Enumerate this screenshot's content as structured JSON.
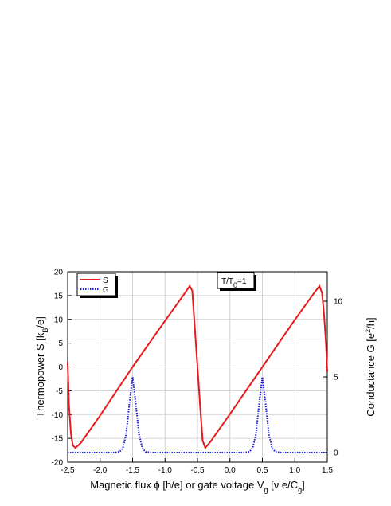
{
  "chart_data": {
    "type": "line",
    "x_label": [
      "Magnetic flux ϕ [h/e] or gate voltage V",
      "g",
      " [ν e/C",
      "g",
      "]"
    ],
    "y_label": [
      "Thermopower S [k",
      "B",
      "/e]"
    ],
    "y2_label": [
      "Conductance G [e",
      "2",
      "/h]"
    ],
    "annotation": [
      "T/T",
      "0",
      "=1"
    ],
    "xlim": [
      -2.5,
      1.5
    ],
    "xticks": [
      {
        "value": -2.5,
        "label": "-2,5"
      },
      {
        "value": -2.0,
        "label": "-2,0"
      },
      {
        "value": -1.5,
        "label": "-1,5"
      },
      {
        "value": -1.0,
        "label": "-1,0"
      },
      {
        "value": -0.5,
        "label": "-0,5"
      },
      {
        "value": 0.0,
        "label": "0,0"
      },
      {
        "value": 0.5,
        "label": "0,5"
      },
      {
        "value": 1.0,
        "label": "1,0"
      },
      {
        "value": 1.5,
        "label": "1,5"
      }
    ],
    "ylim": [
      -20,
      20
    ],
    "yticks": [
      -20,
      -15,
      -10,
      -5,
      0,
      5,
      10,
      15,
      20
    ],
    "y2lim": [
      -0.63,
      11.95
    ],
    "y2ticks": [
      0,
      5,
      10
    ],
    "grid": true,
    "legend": "top-left",
    "series": [
      {
        "name": "S",
        "color": "#e8191b",
        "style": "solid",
        "x": [
          -2.5,
          -2.48,
          -2.45,
          -2.42,
          -2.38,
          -2.3,
          -2.0,
          -1.5,
          -1.0,
          -0.7,
          -0.62,
          -0.58,
          -0.55,
          -0.5,
          -0.45,
          -0.42,
          -0.38,
          -0.3,
          0.0,
          0.5,
          1.0,
          1.3,
          1.38,
          1.42,
          1.45,
          1.48,
          1.5
        ],
        "values": [
          1,
          -8,
          -14,
          -16.5,
          -17,
          -16,
          -10.2,
          0,
          9.7,
          15.4,
          17,
          16,
          10,
          0,
          -10,
          -15.5,
          -17,
          -15.7,
          -9.9,
          0,
          9.9,
          15.6,
          17,
          15.5,
          11,
          5,
          -1
        ]
      },
      {
        "name": "G",
        "color": "#1a1ad6",
        "style": "dotted",
        "axis": "y2",
        "x": [
          -2.5,
          -1.8,
          -1.7,
          -1.65,
          -1.6,
          -1.55,
          -1.5,
          -1.45,
          -1.4,
          -1.35,
          -1.3,
          -1.2,
          0.2,
          0.3,
          0.35,
          0.4,
          0.45,
          0.5,
          0.55,
          0.6,
          0.65,
          0.7,
          0.8,
          1.5
        ],
        "values": [
          0,
          0,
          0.05,
          0.3,
          1.2,
          3.2,
          5,
          3.2,
          1.2,
          0.3,
          0.05,
          0,
          0,
          0.05,
          0.3,
          1.2,
          3.2,
          5,
          3.2,
          1.2,
          0.3,
          0.05,
          0,
          0
        ]
      }
    ]
  }
}
